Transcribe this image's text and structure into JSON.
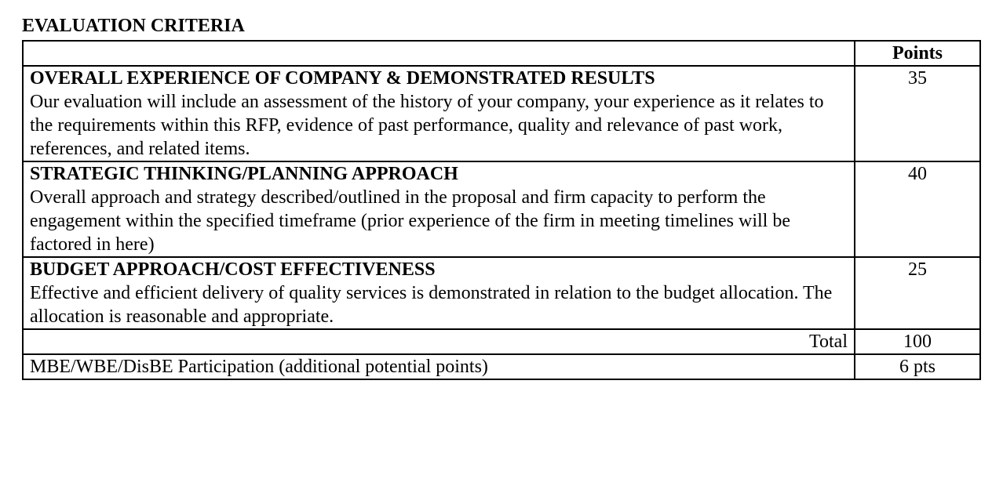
{
  "section_title": "EVALUATION CRITERIA",
  "table": {
    "header": {
      "points_label": "Points"
    },
    "rows": [
      {
        "title": "OVERALL EXPERIENCE OF COMPANY & DEMONSTRATED RESULTS",
        "body": "Our evaluation will include an assessment of the history of your company, your experience as it relates to the requirements within this RFP, evidence of past performance, quality and relevance of past work, references, and related items.",
        "points": "35"
      },
      {
        "title": "STRATEGIC THINKING/PLANNING APPROACH",
        "body": "Overall approach and strategy described/outlined in the proposal and firm capacity to perform the engagement within the specified timeframe (prior experience of the firm in meeting timelines will be factored in here)",
        "points": "40"
      },
      {
        "title": "BUDGET APPROACH/COST EFFECTIVENESS",
        "body": "Effective and efficient delivery of quality services is demonstrated in relation to the budget allocation.  The allocation is reasonable and appropriate.",
        "points": "25"
      }
    ],
    "total": {
      "label": "Total",
      "points": "100"
    },
    "extra": {
      "label": "MBE/WBE/DisBE Participation (additional potential points)",
      "points": "6 pts"
    }
  }
}
